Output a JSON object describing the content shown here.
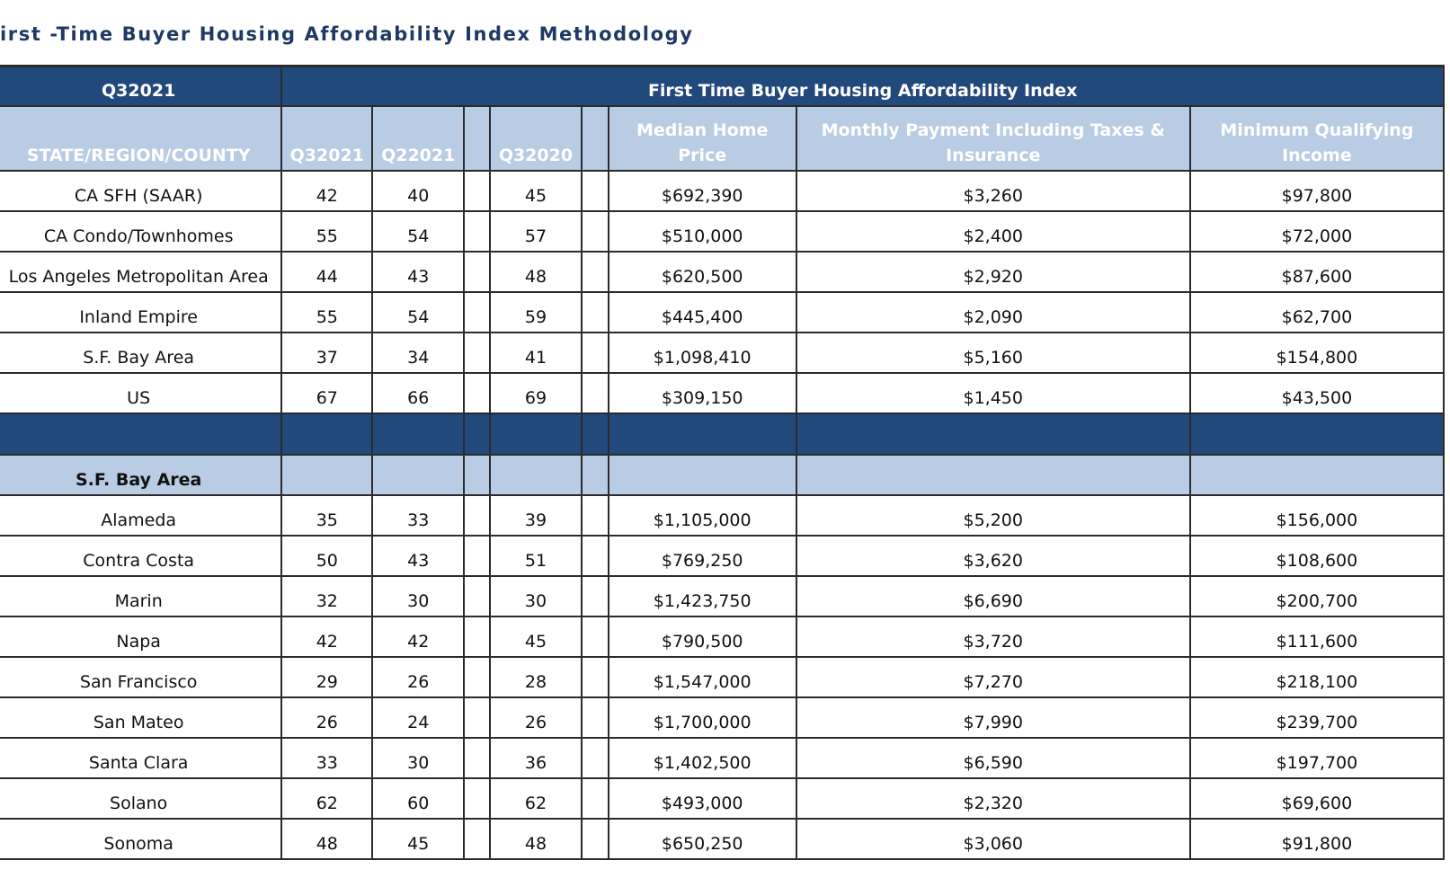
{
  "header": {
    "title": "irst -Time Buyer Housing Affordability Index Methodology"
  },
  "table": {
    "group_headers": [
      "Q32021",
      "First Time Buyer Housing Affordability Index"
    ],
    "columns": [
      "STATE/REGION/COUNTY",
      "Q32021",
      "Q22021",
      "Q32020",
      "Median Home Price",
      "Monthly Payment Including Taxes & Insurance",
      "Minimum Qualifying Income"
    ],
    "rows": [
      [
        "CA SFH (SAAR)",
        "42",
        "40",
        "45",
        "$692,390",
        "$3,260",
        "$97,800"
      ],
      [
        "CA Condo/Townhomes",
        "55",
        "54",
        "57",
        "$510,000",
        "$2,400",
        "$72,000"
      ],
      [
        "Los Angeles Metropolitan Area",
        "44",
        "43",
        "48",
        "$620,500",
        "$2,920",
        "$87,600"
      ],
      [
        "Inland Empire",
        "55",
        "54",
        "59",
        "$445,400",
        "$2,090",
        "$62,700"
      ],
      [
        "S.F. Bay Area",
        "37",
        "34",
        "41",
        "$1,098,410",
        "$5,160",
        "$154,800"
      ],
      [
        "US",
        "67",
        "66",
        "69",
        "$309,150",
        "$1,450",
        "$43,500"
      ]
    ],
    "section_label": "S.F. Bay Area",
    "section_rows": [
      [
        "Alameda",
        "35",
        "33",
        "39",
        "$1,105,000",
        "$5,200",
        "$156,000"
      ],
      [
        "Contra Costa",
        "50",
        "43",
        "51",
        "$769,250",
        "$3,620",
        "$108,600"
      ],
      [
        "Marin",
        "32",
        "30",
        "30",
        "$1,423,750",
        "$6,690",
        "$200,700"
      ],
      [
        "Napa",
        "42",
        "42",
        "45",
        "$790,500",
        "$3,720",
        "$111,600"
      ],
      [
        "San Francisco",
        "29",
        "26",
        "28",
        "$1,547,000",
        "$7,270",
        "$218,100"
      ],
      [
        "San Mateo",
        "26",
        "24",
        "26",
        "$1,700,000",
        "$7,990",
        "$239,700"
      ],
      [
        "Santa Clara",
        "33",
        "30",
        "36",
        "$1,402,500",
        "$6,590",
        "$197,700"
      ],
      [
        "Solano",
        "62",
        "60",
        "62",
        "$493,000",
        "$2,320",
        "$69,600"
      ],
      [
        "Sonoma",
        "48",
        "45",
        "48",
        "$650,250",
        "$3,060",
        "$91,800"
      ]
    ]
  }
}
